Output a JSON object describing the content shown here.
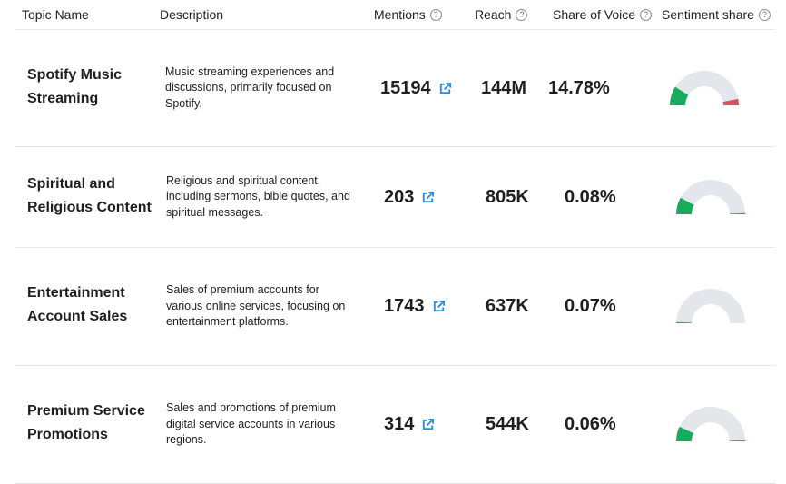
{
  "headers": {
    "topic": "Topic Name",
    "description": "Description",
    "mentions": "Mentions",
    "reach": "Reach",
    "sov": "Share of Voice",
    "sentiment": "Sentiment share"
  },
  "colors": {
    "positive": "#1aaa5f",
    "negative": "#d9505c",
    "neutral": "#e3e6ea",
    "link": "#2b8fe0"
  },
  "rows": [
    {
      "name": "Spotify Music Streaming",
      "description": "Music streaming experiences and discussions, primarily focused on Spotify.",
      "mentions": "15194",
      "reach": "144M",
      "sov": "14.78%",
      "positive": 0.18,
      "negative": 0.06
    },
    {
      "name": "Spiritual and Religious Content",
      "description": "Religious and spiritual content, including sermons, bible quotes, and spiritual messages.",
      "mentions": "203",
      "reach": "805K",
      "sov": "0.08%",
      "positive": 0.16,
      "negative": 0.01
    },
    {
      "name": "Entertainment Account Sales",
      "description": "Sales of premium accounts for various online services, focusing on entertainment platforms.",
      "mentions": "1743",
      "reach": "637K",
      "sov": "0.07%",
      "positive": 0.01,
      "negative": 0
    },
    {
      "name": "Premium Service Promotions",
      "description": "Sales and promotions of premium digital service accounts in various regions.",
      "mentions": "314",
      "reach": "544K",
      "sov": "0.06%",
      "positive": 0.14,
      "negative": 0.01
    }
  ]
}
